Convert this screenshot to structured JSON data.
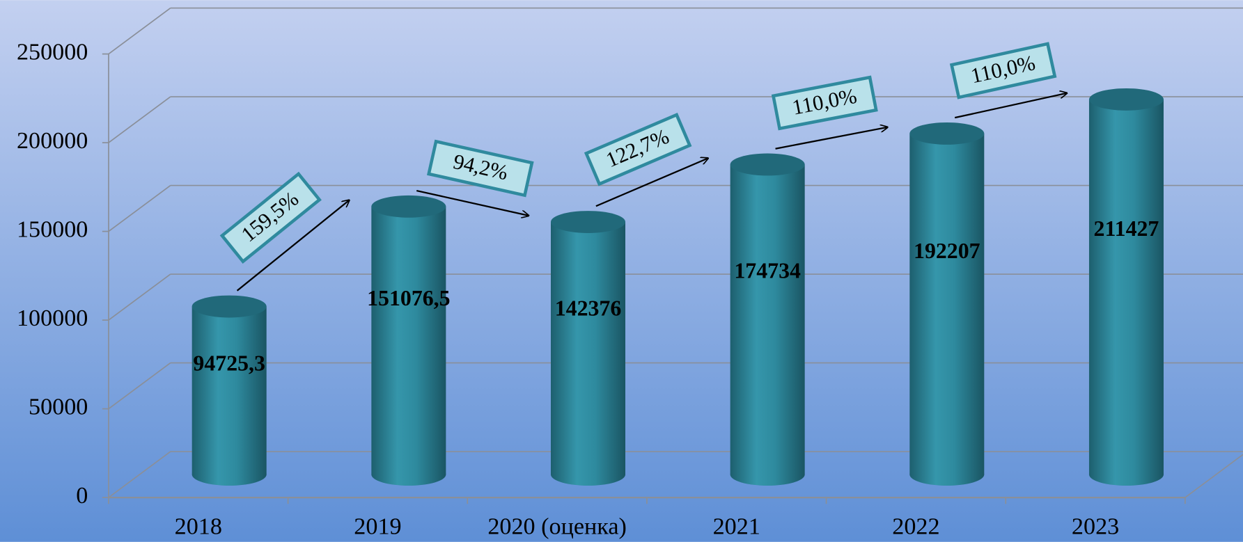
{
  "chart_data": {
    "type": "bar",
    "categories": [
      "2018",
      "2019",
      "2020 (оценка)",
      "2021",
      "2022",
      "2023"
    ],
    "values": [
      94725.3,
      151076.5,
      142376,
      174734,
      192207,
      211427
    ],
    "value_labels": [
      "94725,3",
      "151076,5",
      "142376",
      "174734",
      "192207",
      "211427"
    ],
    "annotations": [
      "159,5%",
      "94,2%",
      "122,7%",
      "110,0%",
      "110,0%"
    ],
    "color": "#2e8a9e",
    "ylim": [
      0,
      250000
    ],
    "yticks": [
      0,
      50000,
      100000,
      150000,
      200000,
      250000
    ],
    "grid": true
  }
}
